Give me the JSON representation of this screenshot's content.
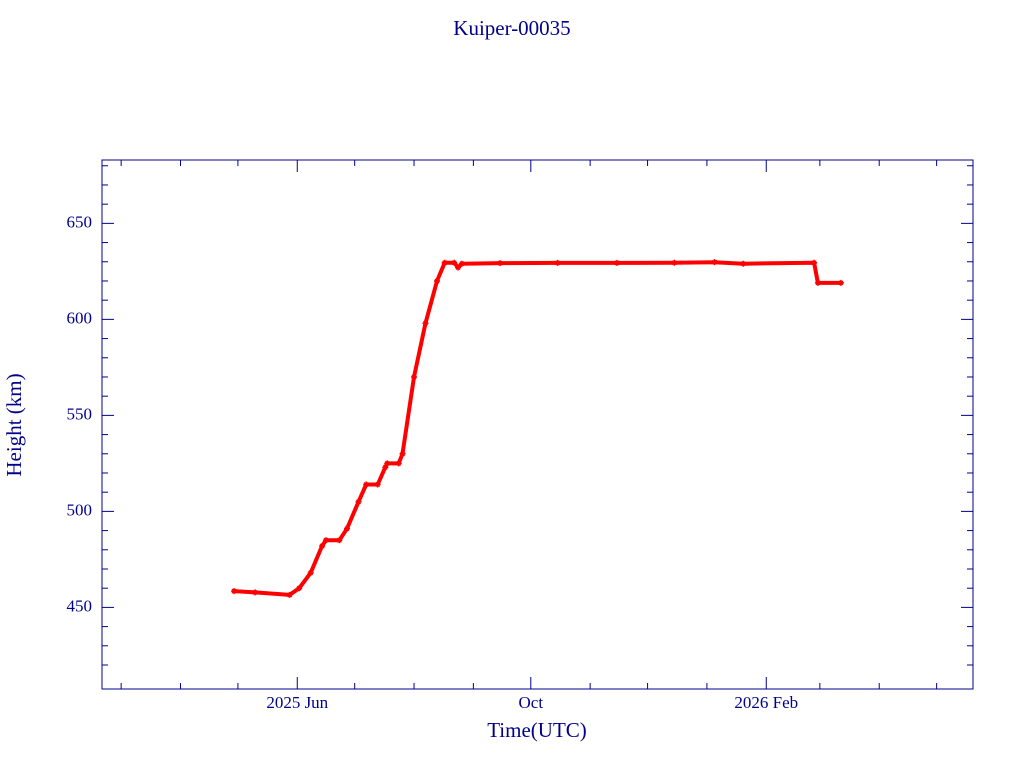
{
  "chart_data": {
    "type": "line",
    "title": "Kuiper-00035",
    "xlabel": "Time(UTC)",
    "ylabel": "Height (km)",
    "x": [
      "2025-04-29",
      "2025-05-10",
      "2025-05-28",
      "2025-06-02",
      "2025-06-08",
      "2025-06-14",
      "2025-06-16",
      "2025-06-23",
      "2025-06-27",
      "2025-07-03",
      "2025-07-07",
      "2025-07-13",
      "2025-07-17",
      "2025-07-18",
      "2025-07-24",
      "2025-07-26",
      "2025-08-01",
      "2025-08-07",
      "2025-08-13",
      "2025-08-17",
      "2025-08-22",
      "2025-08-24",
      "2025-08-26",
      "2025-09-15",
      "2025-10-15",
      "2025-11-15",
      "2025-12-15",
      "2026-01-05",
      "2026-01-20",
      "2026-02-26",
      "2026-02-28",
      "2026-03-12"
    ],
    "series": [
      {
        "name": "Height",
        "color": "#ff0000",
        "values": [
          458.5,
          457.8,
          456.5,
          460,
          468,
          482,
          485,
          485,
          491,
          505,
          514,
          514,
          523,
          525,
          525,
          530,
          570,
          598,
          620,
          629.5,
          629.5,
          627,
          629,
          629.3,
          629.4,
          629.4,
          629.5,
          629.8,
          629,
          629.5,
          619,
          619
        ]
      }
    ],
    "xlim": [
      "2025-02-19",
      "2026-05-20"
    ],
    "xticks": [
      {
        "value": "2025-06-01",
        "label": "2025 Jun"
      },
      {
        "value": "2025-10-01",
        "label": "Oct"
      },
      {
        "value": "2026-02-01",
        "label": "2026 Feb"
      }
    ],
    "xminorticks": [
      "2025-03-01",
      "2025-04-01",
      "2025-05-01",
      "2025-07-01",
      "2025-08-01",
      "2025-09-01",
      "2025-11-01",
      "2025-12-01",
      "2026-01-01",
      "2026-03-01",
      "2026-04-01",
      "2026-05-01"
    ],
    "ylim": [
      407.5,
      683
    ],
    "yticks": [
      450,
      500,
      550,
      600,
      650
    ],
    "yminorticks": [
      420,
      430,
      440,
      460,
      470,
      480,
      490,
      510,
      520,
      530,
      540,
      560,
      570,
      580,
      590,
      610,
      620,
      630,
      640,
      660,
      670,
      680
    ],
    "axis_color": "#00008b"
  }
}
